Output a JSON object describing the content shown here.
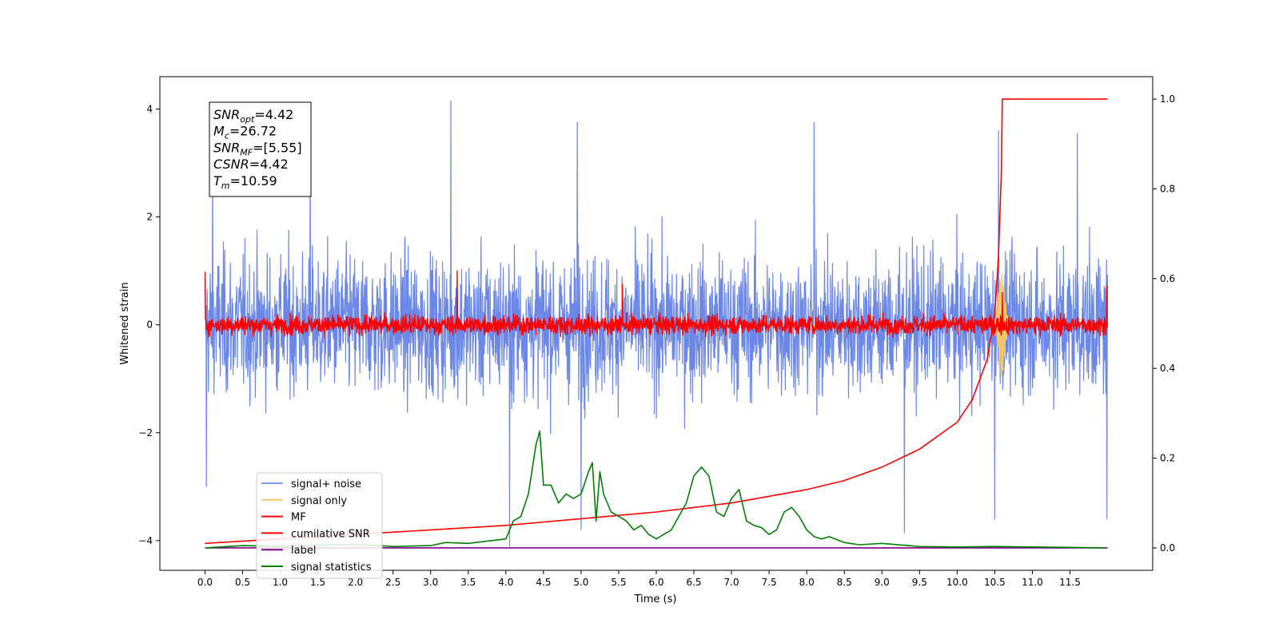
{
  "chart_data": {
    "type": "line",
    "xlabel": "Time (s)",
    "ylabel": "Whitened strain",
    "xlim": [
      -0.6,
      12.6
    ],
    "ylim": [
      -4.55,
      4.6
    ],
    "ylim_right": [
      -0.05,
      1.05
    ],
    "x_ticks": [
      0.0,
      0.5,
      1.0,
      1.5,
      2.0,
      2.5,
      3.0,
      3.5,
      4.0,
      4.5,
      5.0,
      5.5,
      6.0,
      6.5,
      7.0,
      7.5,
      8.0,
      8.5,
      9.0,
      9.5,
      10.0,
      10.5,
      11.0,
      11.5
    ],
    "x_tick_labels": [
      "0.0",
      "0.5",
      "1.0",
      "1.5",
      "2.0",
      "2.5",
      "3.0",
      "3.5",
      "4.0",
      "4.5",
      "5.0",
      "5.5",
      "6.0",
      "6.5",
      "7.0",
      "7.5",
      "8.0",
      "8.5",
      "9.0",
      "9.5",
      "10.0",
      "10.5",
      "11.0",
      "11.5"
    ],
    "y_ticks": [
      -4,
      -2,
      0,
      2,
      4
    ],
    "y_tick_labels": [
      "−4",
      "−2",
      "0",
      "2",
      "4"
    ],
    "y_right_ticks": [
      0.0,
      0.2,
      0.4,
      0.6,
      0.8,
      1.0
    ],
    "y_right_tick_labels": [
      "0.0",
      "0.2",
      "0.4",
      "0.6",
      "0.8",
      "1.0"
    ],
    "grid": false,
    "legend_position": "lower-left",
    "series": [
      {
        "name": "signal+ noise",
        "color": "#6b87e8",
        "axis": "left",
        "kind": "noise",
        "x_range": [
          0.0,
          12.0
        ],
        "amplitude_std": 0.9,
        "spikes": [
          [
            0.02,
            -3.0
          ],
          [
            0.1,
            3.3
          ],
          [
            1.4,
            3.6
          ],
          [
            3.27,
            4.15
          ],
          [
            4.05,
            -4.1
          ],
          [
            4.95,
            3.75
          ],
          [
            5.0,
            -3.8
          ],
          [
            8.1,
            3.75
          ],
          [
            9.3,
            -3.85
          ],
          [
            10.55,
            3.6
          ],
          [
            10.5,
            -3.6
          ],
          [
            11.6,
            3.55
          ],
          [
            11.99,
            -3.6
          ]
        ]
      },
      {
        "name": "signal only",
        "color": "#f4c76a",
        "axis": "left",
        "kind": "burst",
        "center": 10.59,
        "amplitude": 0.95,
        "width": 0.06
      },
      {
        "name": "MF",
        "color": "#ff0000",
        "axis": "left",
        "kind": "noise",
        "x_range": [
          0.0,
          12.0
        ],
        "amplitude_std": 0.12,
        "spikes": [
          [
            0.0,
            0.98
          ],
          [
            3.35,
            1.0
          ],
          [
            5.55,
            0.75
          ],
          [
            10.6,
            0.6
          ],
          [
            11.99,
            0.72
          ]
        ]
      },
      {
        "name": "cumilative SNR",
        "color": "#ff0000",
        "axis": "right",
        "kind": "line",
        "x": [
          0.0,
          1.0,
          2.0,
          3.0,
          4.0,
          5.0,
          6.0,
          7.0,
          8.0,
          8.5,
          9.0,
          9.5,
          10.0,
          10.2,
          10.4,
          10.5,
          10.55,
          10.59,
          10.6,
          12.0
        ],
        "y": [
          0.01,
          0.02,
          0.03,
          0.04,
          0.05,
          0.065,
          0.08,
          0.1,
          0.13,
          0.15,
          0.18,
          0.22,
          0.28,
          0.33,
          0.42,
          0.52,
          0.65,
          0.85,
          1.0,
          1.0
        ]
      },
      {
        "name": "label",
        "color": "#7b008b",
        "axis": "right",
        "kind": "line",
        "x": [
          0.0,
          12.0
        ],
        "y": [
          0.0,
          0.0
        ]
      },
      {
        "name": "signal statistics",
        "color": "#008000",
        "axis": "right",
        "kind": "line",
        "x": [
          0.0,
          0.5,
          1.0,
          1.5,
          2.0,
          2.5,
          3.0,
          3.2,
          3.5,
          4.0,
          4.1,
          4.2,
          4.3,
          4.4,
          4.45,
          4.5,
          4.6,
          4.7,
          4.8,
          4.9,
          5.0,
          5.1,
          5.15,
          5.2,
          5.25,
          5.3,
          5.4,
          5.5,
          5.6,
          5.7,
          5.8,
          5.9,
          6.0,
          6.1,
          6.2,
          6.3,
          6.4,
          6.5,
          6.6,
          6.7,
          6.8,
          6.9,
          7.0,
          7.1,
          7.2,
          7.3,
          7.4,
          7.5,
          7.6,
          7.7,
          7.8,
          7.9,
          8.0,
          8.1,
          8.2,
          8.3,
          8.5,
          8.7,
          9.0,
          9.5,
          10.0,
          10.5,
          11.0,
          11.5,
          11.95
        ],
        "y": [
          0.0,
          0.005,
          0.003,
          0.006,
          0.008,
          0.003,
          0.005,
          0.012,
          0.01,
          0.02,
          0.06,
          0.07,
          0.12,
          0.23,
          0.26,
          0.14,
          0.14,
          0.1,
          0.12,
          0.11,
          0.12,
          0.17,
          0.19,
          0.06,
          0.17,
          0.12,
          0.08,
          0.07,
          0.06,
          0.04,
          0.05,
          0.03,
          0.02,
          0.03,
          0.04,
          0.07,
          0.1,
          0.16,
          0.18,
          0.16,
          0.08,
          0.07,
          0.11,
          0.13,
          0.06,
          0.05,
          0.045,
          0.03,
          0.04,
          0.08,
          0.09,
          0.07,
          0.04,
          0.025,
          0.02,
          0.025,
          0.012,
          0.007,
          0.01,
          0.003,
          0.002,
          0.003,
          0.002,
          0.001,
          0.0
        ]
      }
    ],
    "annotation_lines": [
      {
        "math": "SNR",
        "sub": "opt",
        "text": "=4.42"
      },
      {
        "math": "M",
        "sub": "c",
        "text": "=26.72"
      },
      {
        "math": "SNR",
        "sub": "MF",
        "text": "=[5.55]"
      },
      {
        "math": "CSNR",
        "sub": "",
        "text": "=4.42"
      },
      {
        "math": "T",
        "sub": "m",
        "text": "=10.59"
      }
    ]
  }
}
